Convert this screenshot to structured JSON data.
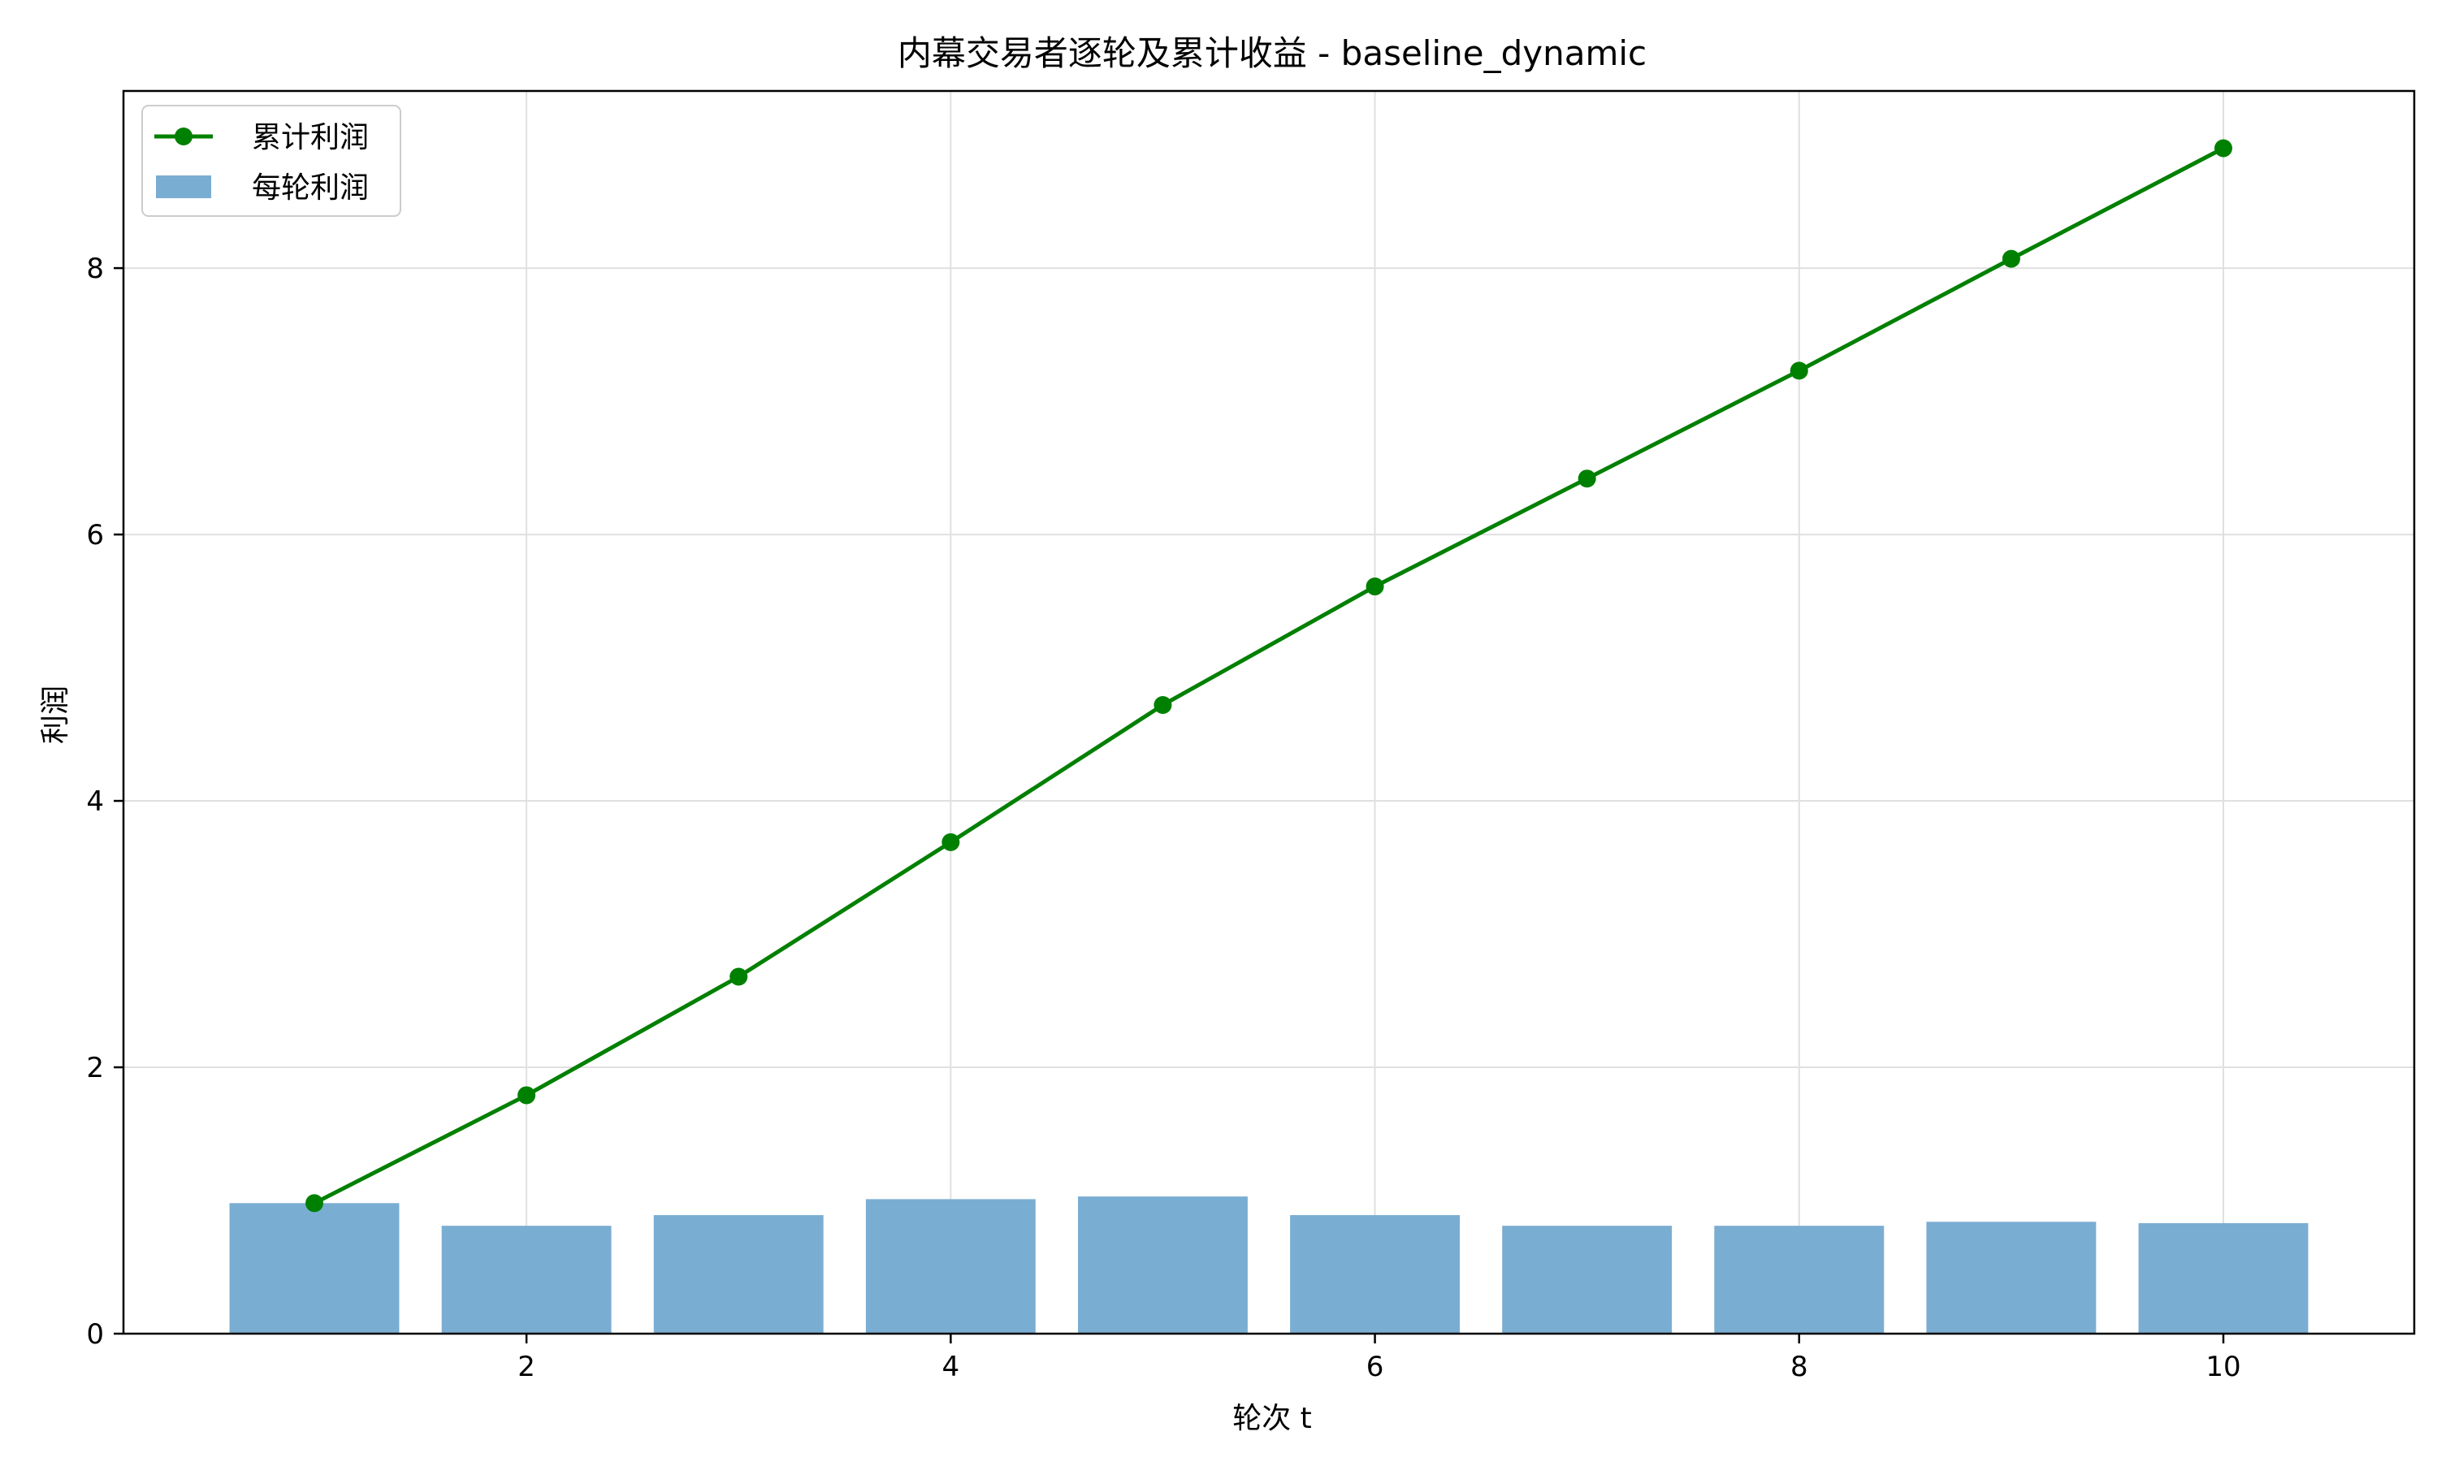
{
  "chart_data": {
    "type": "bar",
    "title": "内幕交易者逐轮及累计收益 - baseline_dynamic",
    "xlabel": "轮次 t",
    "ylabel": "利润",
    "x": [
      1,
      2,
      3,
      4,
      5,
      6,
      7,
      8,
      9,
      10
    ],
    "xlim": [
      0.1,
      10.9
    ],
    "ylim": [
      0,
      9.33
    ],
    "xticks": [
      2,
      4,
      6,
      8,
      10
    ],
    "yticks": [
      0,
      2,
      4,
      6,
      8
    ],
    "grid": true,
    "legend_position": "top-left",
    "series": [
      {
        "name": "累计利润",
        "type": "line",
        "marker": "circle",
        "color": "#008000",
        "values": [
          0.98,
          1.79,
          2.68,
          3.69,
          4.72,
          5.61,
          6.42,
          7.23,
          8.07,
          8.9
        ]
      },
      {
        "name": "每轮利润",
        "type": "bar",
        "color": "#7aadd2",
        "values": [
          0.98,
          0.81,
          0.89,
          1.01,
          1.03,
          0.89,
          0.81,
          0.81,
          0.84,
          0.83
        ]
      }
    ]
  }
}
